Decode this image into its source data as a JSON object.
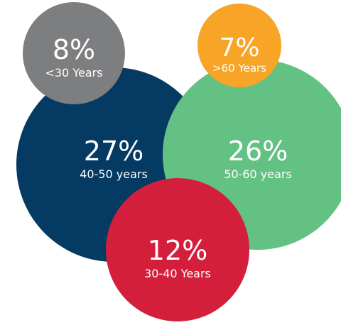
{
  "chart_data": {
    "type": "bubble",
    "title": "",
    "bubbles": [
      {
        "id": "b40-50",
        "value": 27,
        "label_value": "27%",
        "label": "40-50 years",
        "color": "#053a63"
      },
      {
        "id": "b50-60",
        "value": 26,
        "label_value": "26%",
        "label": "50-60 years",
        "color": "#63c184"
      },
      {
        "id": "b30-40",
        "value": 12,
        "label_value": "12%",
        "label": "30-40 Years",
        "color": "#d41f3c"
      },
      {
        "id": "b-under30",
        "value": 8,
        "label_value": "8%",
        "label": "<30 Years",
        "color": "#7d7e80"
      },
      {
        "id": "b-over60",
        "value": 7,
        "label_value": "7%",
        "label": ">60 Years",
        "color": "#f8a426"
      }
    ]
  }
}
